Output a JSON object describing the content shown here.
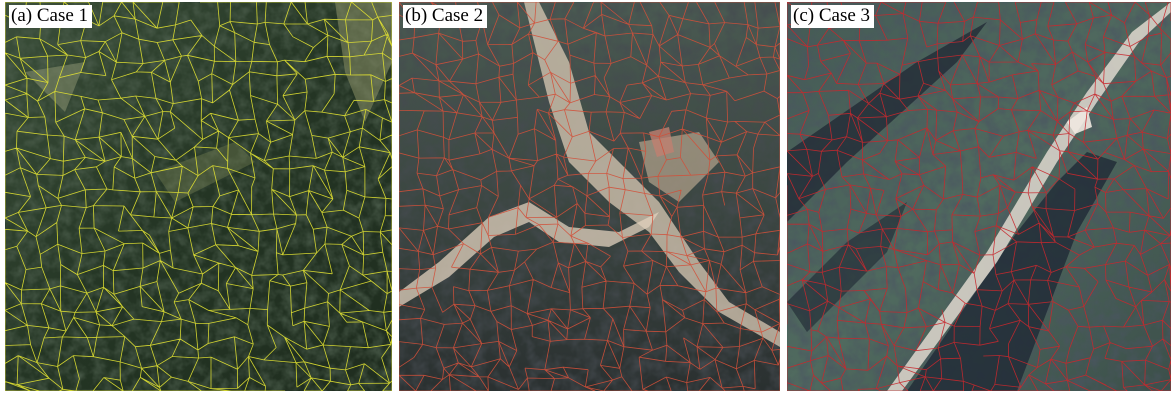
{
  "panels": [
    {
      "caption": "(a) Case 1",
      "segment_color": "#e4e432",
      "tone": "dark-green-forest"
    },
    {
      "caption": "(b) Case 2",
      "segment_color": "#d2503a",
      "tone": "valley-with-bright-river"
    },
    {
      "caption": "(c) Case 3",
      "segment_color": "#c8282d",
      "tone": "ridges-with-diagonal-road"
    }
  ]
}
